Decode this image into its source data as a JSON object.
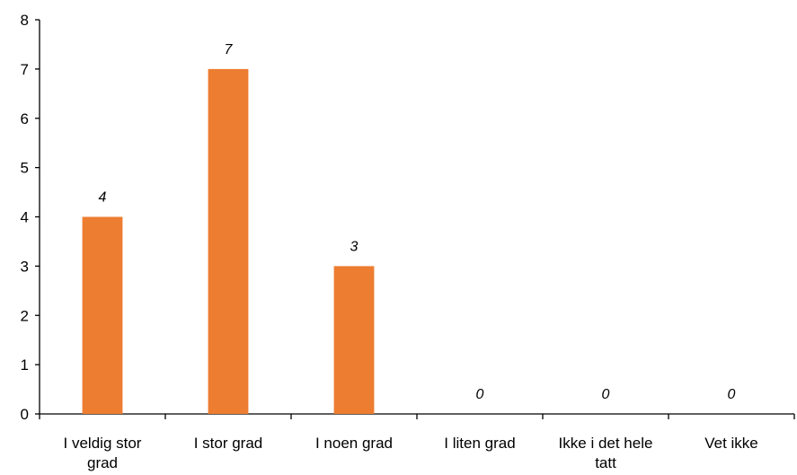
{
  "chart_data": {
    "type": "bar",
    "categories": [
      [
        "I veldig stor",
        "grad"
      ],
      [
        "I stor grad"
      ],
      [
        "I noen grad"
      ],
      [
        "I liten grad"
      ],
      [
        "Ikke i det hele",
        "tatt"
      ],
      [
        "Vet ikke"
      ]
    ],
    "values": [
      4,
      7,
      3,
      0,
      0,
      0
    ],
    "data_labels": [
      "4",
      "7",
      "3",
      "0",
      "0",
      "0"
    ],
    "ylim": [
      0,
      8
    ],
    "yticks": [
      "0",
      "1",
      "2",
      "3",
      "4",
      "5",
      "6",
      "7",
      "8"
    ],
    "grid": false,
    "legend": "none",
    "bar_color": "#ED7D31"
  }
}
